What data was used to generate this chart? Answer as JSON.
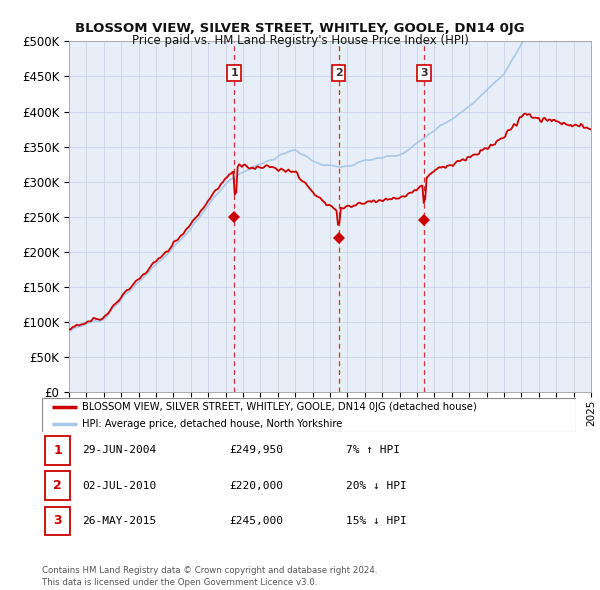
{
  "title": "BLOSSOM VIEW, SILVER STREET, WHITLEY, GOOLE, DN14 0JG",
  "subtitle": "Price paid vs. HM Land Registry's House Price Index (HPI)",
  "ylim": [
    0,
    500000
  ],
  "yticks": [
    0,
    50000,
    100000,
    150000,
    200000,
    250000,
    300000,
    350000,
    400000,
    450000,
    500000
  ],
  "ytick_labels": [
    "£0",
    "£50K",
    "£100K",
    "£150K",
    "£200K",
    "£250K",
    "£300K",
    "£350K",
    "£400K",
    "£450K",
    "£500K"
  ],
  "hpi_color": "#a8c8e8",
  "price_color": "#cc0000",
  "background_color": "#ffffff",
  "plot_bg_color": "#e8eef8",
  "grid_color": "#c8d4e8",
  "sale_points": [
    {
      "date_x": 2004.49,
      "price": 249950,
      "label": "1"
    },
    {
      "date_x": 2010.5,
      "price": 220000,
      "label": "2"
    },
    {
      "date_x": 2015.4,
      "price": 245000,
      "label": "3"
    }
  ],
  "sale_label_info": [
    {
      "num": "1",
      "date": "29-JUN-2004",
      "price": "£249,950",
      "pct": "7%",
      "dir": "↑",
      "rel": "HPI"
    },
    {
      "num": "2",
      "date": "02-JUL-2010",
      "price": "£220,000",
      "pct": "20%",
      "dir": "↓",
      "rel": "HPI"
    },
    {
      "num": "3",
      "date": "26-MAY-2015",
      "price": "£245,000",
      "pct": "15%",
      "dir": "↓",
      "rel": "HPI"
    }
  ],
  "legend_line1": "BLOSSOM VIEW, SILVER STREET, WHITLEY, GOOLE, DN14 0JG (detached house)",
  "legend_line2": "HPI: Average price, detached house, North Yorkshire",
  "footer1": "Contains HM Land Registry data © Crown copyright and database right 2024.",
  "footer2": "This data is licensed under the Open Government Licence v3.0.",
  "xmin": 1995,
  "xmax": 2025
}
